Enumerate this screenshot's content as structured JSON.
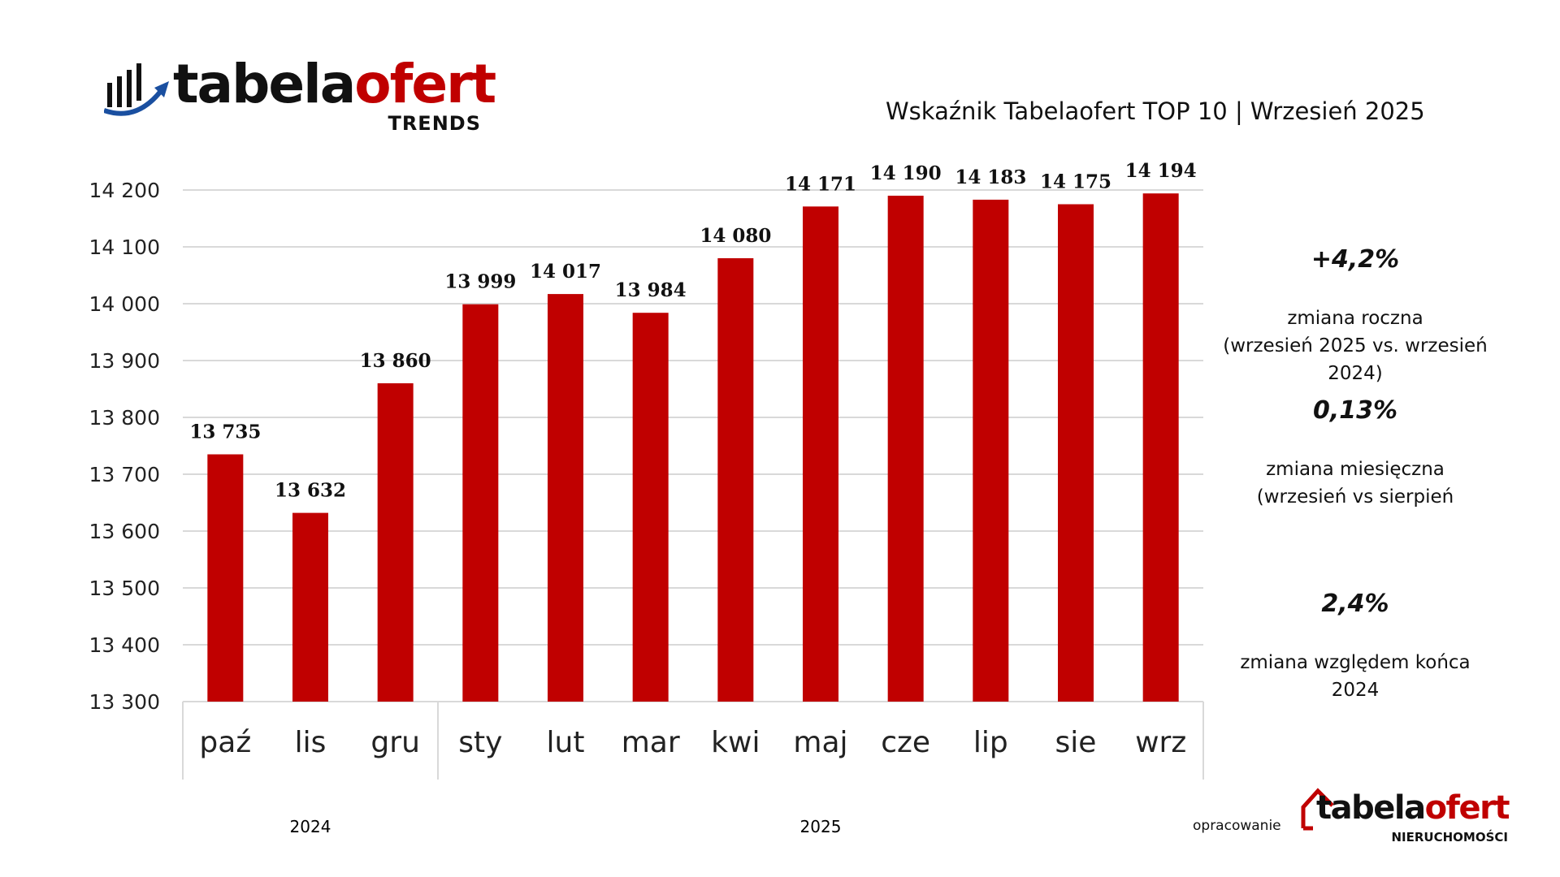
{
  "header": {
    "logo_text_black": "tabela",
    "logo_text_red": "ofert",
    "logo_sub": "TRENDS",
    "title": "Wskaźnik Tabelaofert TOP 10  | Wrzesień 2025"
  },
  "chart_data": {
    "type": "bar",
    "title": "Wskaźnik Tabelaofert TOP 10 | Wrzesień 2025",
    "categories": [
      "paź",
      "lis",
      "gru",
      "sty",
      "lut",
      "mar",
      "kwi",
      "maj",
      "cze",
      "lip",
      "sie",
      "wrz"
    ],
    "values": [
      13735,
      13632,
      13860,
      13999,
      14017,
      13984,
      14080,
      14171,
      14190,
      14183,
      14175,
      14194
    ],
    "data_labels": [
      "13 735",
      "13 632",
      "13 860",
      "13 999",
      "14 017",
      "13 984",
      "14 080",
      "14 171",
      "14 190",
      "14 183",
      "14 175",
      "14 194"
    ],
    "groups": [
      {
        "label": "2024",
        "count": 3
      },
      {
        "label": "2025",
        "count": 9
      }
    ],
    "ylim": [
      13300,
      14200
    ],
    "yticks": [
      13300,
      13400,
      13500,
      13600,
      13700,
      13800,
      13900,
      14000,
      14100,
      14200
    ],
    "ytick_labels": [
      "13 300",
      "13 400",
      "13 500",
      "13 600",
      "13 700",
      "13 800",
      "13 900",
      "14 000",
      "14 100",
      "14 200"
    ],
    "grid": true,
    "xlabel": "",
    "ylabel": "",
    "bar_color": "#c00000"
  },
  "stats": [
    {
      "value": "+4,2%",
      "lines": [
        "zmiana roczna",
        "(wrzesień 2025 vs. wrzesień",
        "2024)"
      ]
    },
    {
      "value": "0,13%",
      "lines": [
        "zmiana miesięczna",
        "(wrzesień vs sierpień"
      ]
    },
    {
      "value": "2,4%",
      "lines": [
        "zmiana względem końca",
        "2024"
      ]
    }
  ],
  "footer": {
    "credit": "opracowanie",
    "logo_text_black": "tabela",
    "logo_text_red": "ofert",
    "logo_sub": "NIERUCHOMOŚCI"
  }
}
